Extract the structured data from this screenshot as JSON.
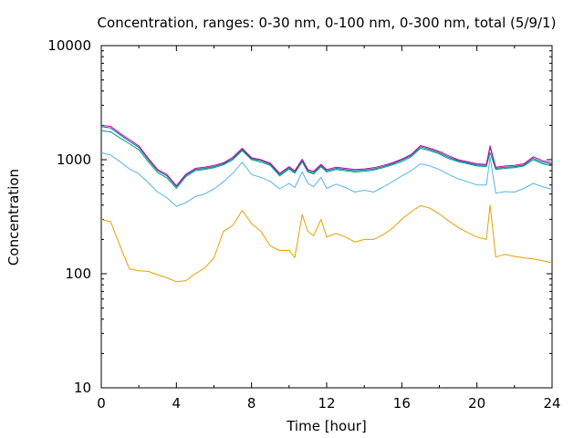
{
  "chart_data": {
    "type": "line",
    "title": "Concentration, ranges: 0-30 nm, 0-100 nm, 0-300 nm, total (5/9/1)",
    "xlabel": "Time [hour]",
    "ylabel": "Concentration",
    "xlim": [
      0,
      24
    ],
    "ylim": [
      10,
      10000
    ],
    "yscale": "log",
    "grid": false,
    "legend": "none",
    "x_ticks": [
      "0",
      "4",
      "8",
      "12",
      "16",
      "20",
      "24"
    ],
    "y_ticks": [
      "10",
      "100",
      "1000",
      "10000"
    ],
    "x": [
      0,
      0.5,
      1,
      1.5,
      2,
      2.5,
      3,
      3.5,
      4,
      4.5,
      5,
      5.5,
      6,
      6.5,
      7,
      7.5,
      8,
      8.5,
      9,
      9.5,
      10,
      10.3,
      10.7,
      11,
      11.3,
      11.7,
      12,
      12.5,
      13,
      13.5,
      14,
      14.5,
      15,
      15.5,
      16,
      16.5,
      17,
      17.5,
      18,
      18.5,
      19,
      19.5,
      20,
      20.5,
      20.7,
      21,
      21.5,
      22,
      22.5,
      23,
      23.5,
      24
    ],
    "series": [
      {
        "color": "#e69f00",
        "values": [
          300,
          285,
          175,
          110,
          106,
          105,
          98,
          92,
          85,
          87,
          100,
          112,
          138,
          235,
          265,
          360,
          275,
          235,
          175,
          160,
          160,
          138,
          330,
          235,
          215,
          300,
          210,
          225,
          210,
          190,
          200,
          200,
          220,
          250,
          300,
          350,
          395,
          375,
          335,
          290,
          255,
          230,
          210,
          200,
          400,
          140,
          148,
          142,
          138,
          135,
          130,
          125
        ]
      },
      {
        "color": "#56b4e9",
        "values": [
          1150,
          1100,
          960,
          830,
          750,
          630,
          520,
          465,
          390,
          420,
          475,
          500,
          555,
          640,
          760,
          950,
          740,
          700,
          645,
          555,
          620,
          570,
          780,
          620,
          580,
          700,
          560,
          610,
          570,
          520,
          540,
          520,
          575,
          640,
          720,
          800,
          920,
          880,
          820,
          740,
          680,
          640,
          600,
          600,
          1050,
          510,
          525,
          520,
          560,
          620,
          580,
          550
        ]
      },
      {
        "color": "#009e73",
        "values": [
          1800,
          1750,
          1550,
          1380,
          1220,
          960,
          770,
          690,
          560,
          710,
          800,
          820,
          850,
          900,
          1000,
          1200,
          1000,
          950,
          890,
          720,
          830,
          760,
          960,
          780,
          750,
          870,
          780,
          820,
          800,
          780,
          790,
          810,
          850,
          900,
          960,
          1060,
          1260,
          1200,
          1120,
          1020,
          960,
          920,
          880,
          870,
          1150,
          820,
          840,
          850,
          880,
          1000,
          920,
          880
        ]
      },
      {
        "color": "#0072b2",
        "values": [
          1950,
          1900,
          1650,
          1450,
          1280,
          1000,
          800,
          720,
          580,
          730,
          820,
          840,
          870,
          920,
          1020,
          1230,
          1020,
          980,
          910,
          740,
          850,
          780,
          980,
          800,
          770,
          890,
          800,
          840,
          820,
          800,
          810,
          830,
          870,
          920,
          990,
          1090,
          1300,
          1230,
          1150,
          1050,
          980,
          940,
          900,
          890,
          1280,
          840,
          860,
          870,
          900,
          1030,
          950,
          910
        ]
      },
      {
        "color": "#cc0099",
        "values": [
          2000,
          1960,
          1700,
          1500,
          1320,
          1030,
          820,
          740,
          590,
          745,
          840,
          860,
          890,
          940,
          1050,
          1260,
          1040,
          1000,
          930,
          760,
          870,
          800,
          1010,
          820,
          790,
          910,
          820,
          860,
          840,
          820,
          830,
          850,
          890,
          940,
          1010,
          1110,
          1330,
          1260,
          1180,
          1080,
          1000,
          960,
          920,
          910,
          1320,
          860,
          880,
          890,
          920,
          1060,
          980,
          940
        ]
      }
    ]
  }
}
